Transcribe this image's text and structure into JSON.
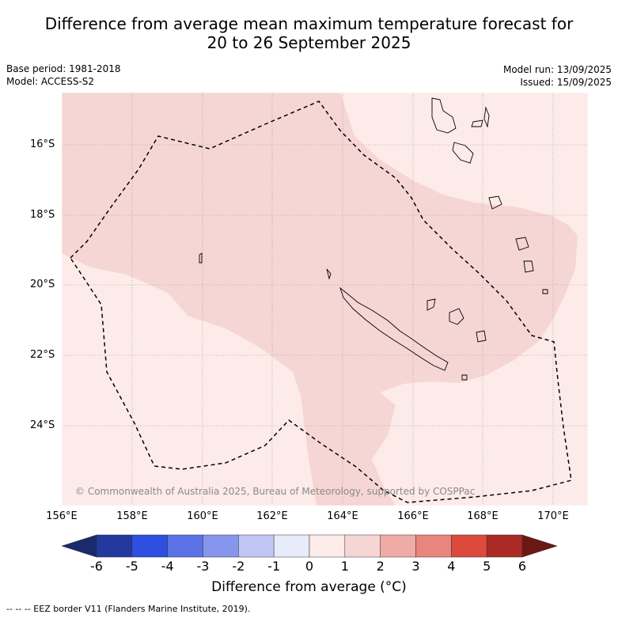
{
  "title_line1": "Difference from average mean maximum temperature forecast for",
  "title_line2": "20 to 26 September 2025",
  "base_period": "Base period: 1981-2018",
  "model": "Model: ACCESS-S2",
  "model_run": "Model run: 13/09/2025",
  "issued": "Issued: 15/09/2025",
  "map": {
    "lon_labels": [
      "156°E",
      "158°E",
      "160°E",
      "162°E",
      "164°E",
      "166°E",
      "168°E",
      "170°E"
    ],
    "lat_labels": [
      "16°S",
      "18°S",
      "20°S",
      "22°S",
      "24°S"
    ],
    "copyright": "© Commonwealth of Australia 2025, Bureau of Meteorology, supported by COSPPac",
    "colors": {
      "anomaly_0_1": "#fdebe9",
      "anomaly_1_2": "#f6d6d4"
    }
  },
  "colorbar": {
    "ticks": [
      "-6",
      "-5",
      "-4",
      "-3",
      "-2",
      "-1",
      "0",
      "1",
      "2",
      "3",
      "4",
      "5",
      "6"
    ],
    "colors": [
      "#24399e",
      "#2f4fe0",
      "#5a72e6",
      "#8696ec",
      "#bfc6f3",
      "#e7ebfa",
      "#fdebe9",
      "#f6d6d4",
      "#efaba6",
      "#e9857f",
      "#dc4a3e",
      "#ab2a25"
    ],
    "under_color": "#1b2a6b",
    "over_color": "#6b1815",
    "label": "Difference from average (°C)"
  },
  "footnote": "--  --  -- EEZ border V11 (Flanders Marine Institute, 2019)."
}
